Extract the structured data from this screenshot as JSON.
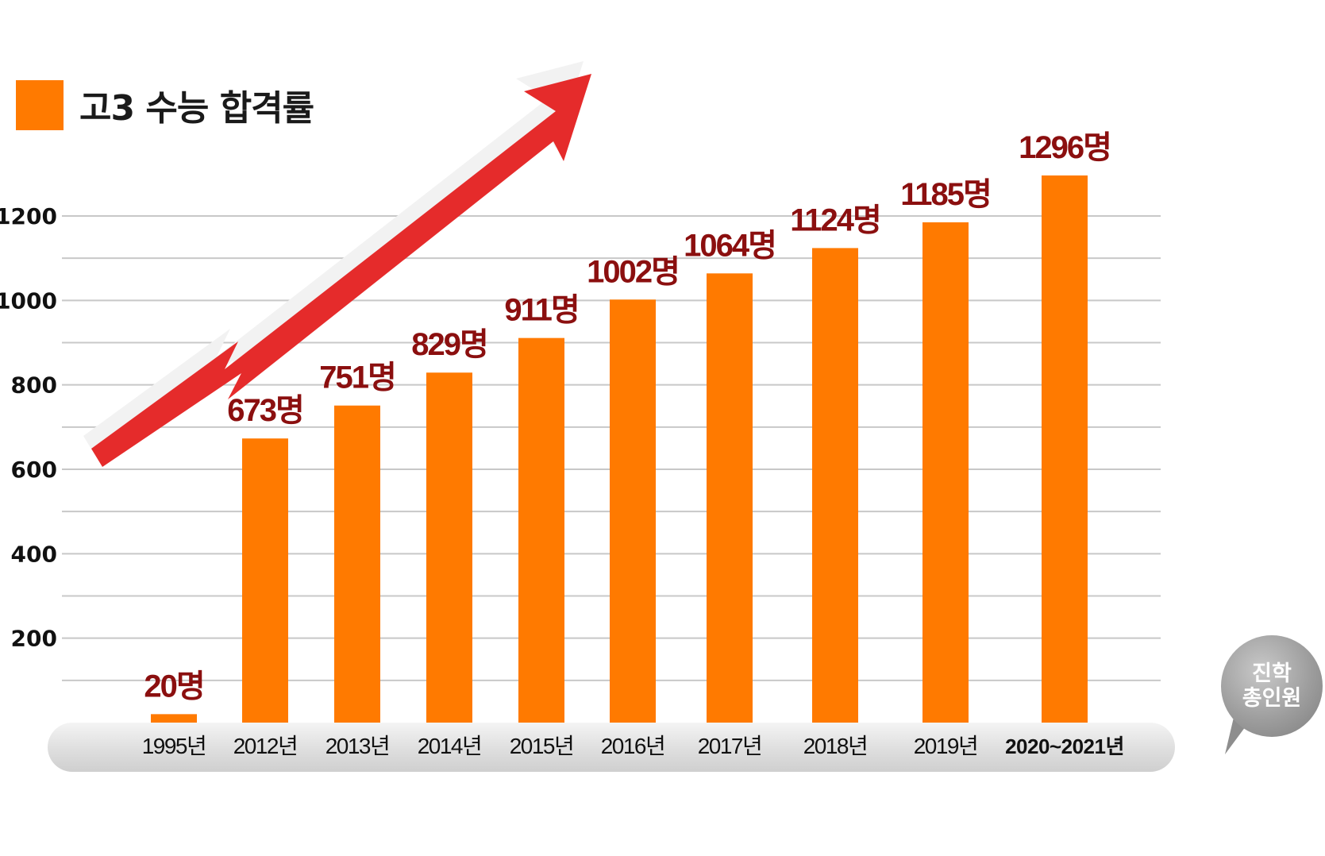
{
  "legend": {
    "label": "고3 수능 합격률",
    "color": "#ff7a00"
  },
  "bubble": {
    "label": "진학\n총인원"
  },
  "colors": {
    "bar": "#ff7a00",
    "value_label": "#8b0f0f",
    "arrow": "#e52b2b",
    "grid": "#c8c8c8",
    "axis_band": "#e3e3e3"
  },
  "chart_data": {
    "type": "bar",
    "categories": [
      "1995년",
      "2012년",
      "2013년",
      "2014년",
      "2015년",
      "2016년",
      "2017년",
      "2018년",
      "2019년",
      "2020~2021년"
    ],
    "values": [
      20,
      673,
      751,
      829,
      911,
      1002,
      1064,
      1124,
      1185,
      1296
    ],
    "value_labels": [
      "20명",
      "673명",
      "751명",
      "829명",
      "911명",
      "1002명",
      "1064명",
      "1124명",
      "1185명",
      "1296명"
    ],
    "series": [
      {
        "name": "고3 수능 합격률",
        "values": [
          20,
          673,
          751,
          829,
          911,
          1002,
          1064,
          1124,
          1185,
          1296
        ]
      }
    ],
    "y_ticks": [
      200,
      400,
      600,
      800,
      1000,
      1200
    ],
    "ylim": [
      0,
      1300
    ],
    "grid": true,
    "legend_position": "top-left"
  }
}
